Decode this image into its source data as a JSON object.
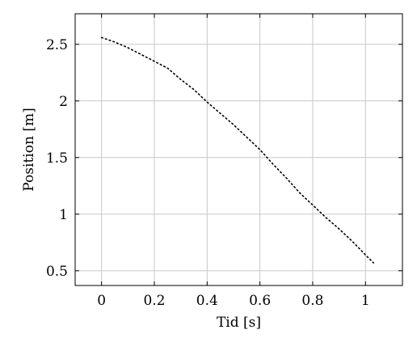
{
  "chart_data": {
    "type": "line",
    "xlabel": "Tid [s]",
    "ylabel": "Position [m]",
    "xlim": [
      -0.1,
      1.14
    ],
    "ylim": [
      0.37,
      2.77
    ],
    "xticks": [
      0,
      0.2,
      0.4,
      0.6,
      0.8,
      1
    ],
    "xtick_labels": [
      "0",
      "0.2",
      "0.4",
      "0.6",
      "0.8",
      "1"
    ],
    "yticks": [
      0.5,
      1,
      1.5,
      2,
      2.5
    ],
    "ytick_labels": [
      "0.5",
      "1",
      "1.5",
      "2",
      "2.5"
    ],
    "grid": true,
    "series": [
      {
        "line_style": "dotted",
        "color": "#000000",
        "x": [
          0,
          0.05,
          0.1,
          0.15,
          0.2,
          0.25,
          0.3,
          0.35,
          0.4,
          0.45,
          0.5,
          0.55,
          0.6,
          0.65,
          0.7,
          0.75,
          0.8,
          0.85,
          0.9,
          0.95,
          1.0,
          1.03
        ],
        "y": [
          2.56,
          2.52,
          2.47,
          2.41,
          2.35,
          2.29,
          2.19,
          2.1,
          1.99,
          1.89,
          1.79,
          1.68,
          1.57,
          1.44,
          1.32,
          1.19,
          1.08,
          0.97,
          0.87,
          0.76,
          0.64,
          0.57
        ]
      }
    ]
  }
}
